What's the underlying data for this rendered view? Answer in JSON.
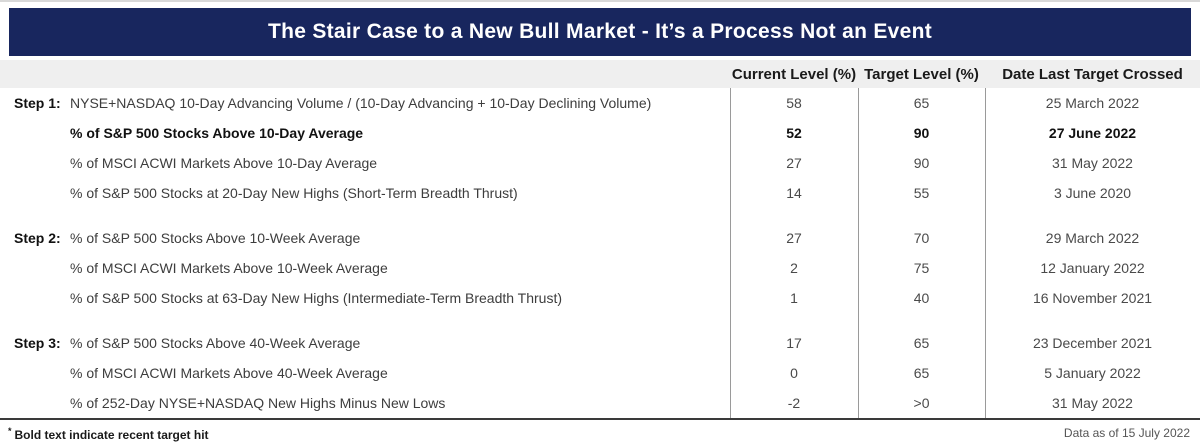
{
  "chart_data": {
    "type": "table",
    "title": "The Stair Case to a New Bull Market - It’s a Process Not an Event",
    "columns": [
      "Current Level (%)",
      "Target Level (%)",
      "Date Last Target Crossed"
    ],
    "rows": [
      {
        "step": "Step 1:",
        "label": "NYSE+NASDAQ 10-Day Advancing Volume / (10-Day Advancing + 10-Day Declining Volume)",
        "current": "58",
        "target": "65",
        "date": "25 March 2022",
        "bold": false
      },
      {
        "step": "",
        "label": "% of S&P 500 Stocks Above 10-Day Average",
        "current": "52",
        "target": "90",
        "date": "27 June 2022",
        "bold": true
      },
      {
        "step": "",
        "label": "% of MSCI ACWI Markets Above 10-Day Average",
        "current": "27",
        "target": "90",
        "date": "31 May 2022",
        "bold": false
      },
      {
        "step": "",
        "label": "% of S&P 500 Stocks at 20-Day New Highs (Short-Term Breadth Thrust)",
        "current": "14",
        "target": "55",
        "date": "3 June 2020",
        "bold": false
      },
      {
        "step": "Step 2:",
        "label": "% of S&P 500 Stocks Above 10-Week Average",
        "current": "27",
        "target": "70",
        "date": "29 March 2022",
        "bold": false
      },
      {
        "step": "",
        "label": "% of MSCI ACWI Markets Above 10-Week Average",
        "current": "2",
        "target": "75",
        "date": "12 January 2022",
        "bold": false
      },
      {
        "step": "",
        "label": "% of S&P 500 Stocks at 63-Day New Highs (Intermediate-Term Breadth Thrust)",
        "current": "1",
        "target": "40",
        "date": "16 November 2021",
        "bold": false
      },
      {
        "step": "Step 3:",
        "label": "% of S&P 500 Stocks Above 40-Week Average",
        "current": "17",
        "target": "65",
        "date": "23 December 2021",
        "bold": false
      },
      {
        "step": "",
        "label": "% of MSCI ACWI Markets Above 40-Week Average",
        "current": "0",
        "target": "65",
        "date": "5 January 2022",
        "bold": false
      },
      {
        "step": "",
        "label": "% of 252-Day NYSE+NASDAQ New Highs Minus New Lows",
        "current": "-2",
        "target": ">0",
        "date": "31 May 2022",
        "bold": false
      }
    ]
  },
  "footer": {
    "note_marker": "*",
    "note_text": "Bold text indicate recent target hit",
    "data_as_of": "Data as of 15 July 2022"
  },
  "colors": {
    "title_bar": "#18265e",
    "header_row_bg": "#efefef",
    "divider": "#9a9a9a",
    "bottom_rule": "#3a3a3a"
  }
}
